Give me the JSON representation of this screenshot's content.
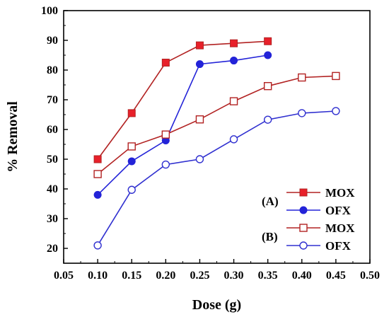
{
  "chart_data": {
    "type": "line",
    "xlabel": "Dose (g)",
    "ylabel": "% Removal",
    "xlim": [
      0.05,
      0.5
    ],
    "ylim": [
      15,
      100
    ],
    "x_ticks": [
      "0.05",
      "0.10",
      "0.15",
      "0.20",
      "0.25",
      "0.30",
      "0.35",
      "0.40",
      "0.45",
      "0.50"
    ],
    "y_ticks": [
      "20",
      "30",
      "40",
      "50",
      "60",
      "70",
      "80",
      "90",
      "100"
    ],
    "grid": false,
    "legend_position": "bottom-right",
    "colors": {
      "mox": "#b22222",
      "mox_marker": "#e8202a",
      "ofx": "#1f1fdd",
      "ofx_a": "#2323d8",
      "ofx_b": "#3030d0"
    },
    "groups": [
      {
        "label": "(A)",
        "series": [
          {
            "name": "MOX",
            "marker": "filled-square",
            "x": [
              0.1,
              0.15,
              0.2,
              0.25,
              0.3,
              0.35
            ],
            "values": [
              50,
              65.5,
              82.5,
              88.3,
              89,
              89.7
            ]
          },
          {
            "name": "OFX",
            "marker": "filled-circle",
            "x": [
              0.1,
              0.15,
              0.2,
              0.25,
              0.3,
              0.35
            ],
            "values": [
              38,
              49.3,
              56.3,
              82,
              83.2,
              85
            ]
          }
        ]
      },
      {
        "label": "(B)",
        "series": [
          {
            "name": "MOX",
            "marker": "open-square",
            "x": [
              0.1,
              0.15,
              0.2,
              0.25,
              0.3,
              0.35,
              0.4,
              0.45
            ],
            "values": [
              45,
              54.3,
              58.3,
              63.4,
              69.5,
              74.6,
              77.5,
              78
            ]
          },
          {
            "name": "OFX",
            "marker": "open-circle",
            "x": [
              0.1,
              0.15,
              0.2,
              0.25,
              0.3,
              0.35,
              0.4,
              0.45
            ],
            "values": [
              21,
              39.7,
              48.2,
              50,
              56.7,
              63.3,
              65.5,
              66.2
            ]
          }
        ]
      }
    ]
  }
}
